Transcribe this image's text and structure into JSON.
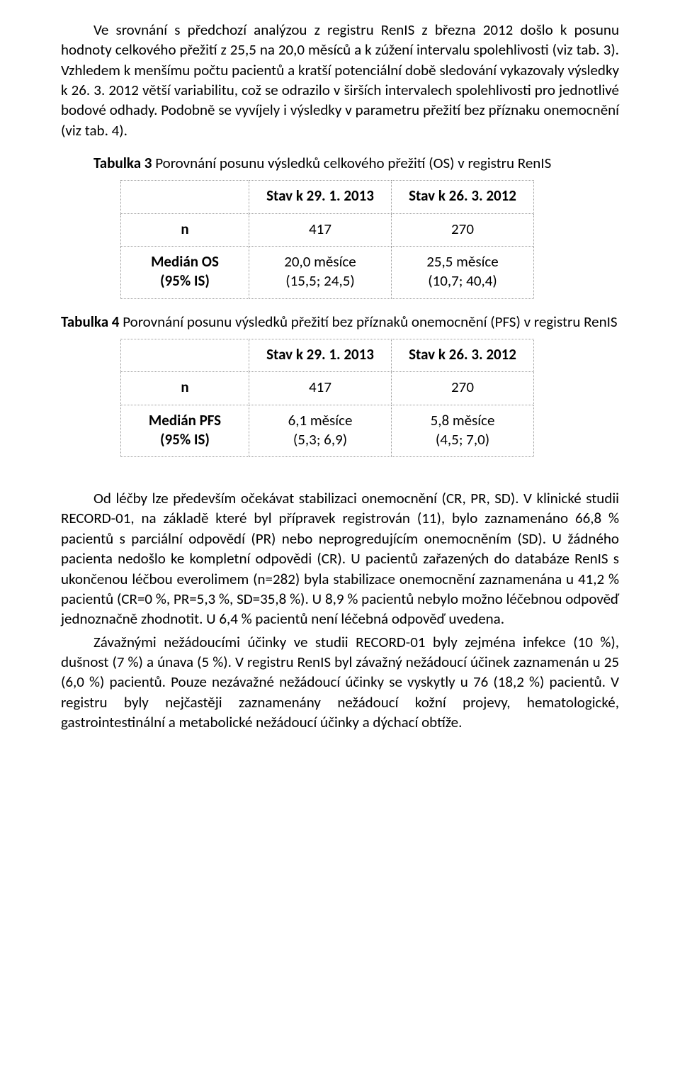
{
  "p1": "Ve srovnání s předchozí analýzou z registru RenIS z března 2012 došlo k posunu hodnoty celkového přežití z 25,5 na 20,0 měsíců a k zúžení intervalu spolehlivosti (viz tab. 3). Vzhledem k menšímu počtu pacientů a kratší potenciální době sledování vykazovaly výsledky k 26. 3. 2012 větší variabilitu, což se odrazilo v širších intervalech spolehlivosti pro jednotlivé bodové odhady. Podobně se vyvíjely i výsledky v parametru přežití bez příznaku onemocnění (viz tab. 4).",
  "tab3_lead": "Tabulka 3",
  "tab3_rest": " Porovnání posunu výsledků celkového přežití (OS) v registru RenIS",
  "t3": {
    "h1": "Stav k 29. 1. 2013",
    "h2": "Stav k 26. 3. 2012",
    "r1_label": "n",
    "r1_c1": "417",
    "r1_c2": "270",
    "r2_label_l1": "Medián OS",
    "r2_label_l2": "(95% IS)",
    "r2_c1_l1": "20,0 měsíce",
    "r2_c1_l2": "(15,5; 24,5)",
    "r2_c2_l1": "25,5 měsíce",
    "r2_c2_l2": "(10,7; 40,4)"
  },
  "tab4_lead": "Tabulka 4",
  "tab4_rest": " Porovnání posunu výsledků přežití bez příznaků onemocnění (PFS) v registru RenIS",
  "t4": {
    "h1": "Stav k 29. 1. 2013",
    "h2": "Stav k 26. 3. 2012",
    "r1_label": "n",
    "r1_c1": "417",
    "r1_c2": "270",
    "r2_label_l1": "Medián PFS",
    "r2_label_l2": "(95% IS)",
    "r2_c1_l1": "6,1 měsíce",
    "r2_c1_l2": "(5,3; 6,9)",
    "r2_c2_l1": "5,8 měsíce",
    "r2_c2_l2": "(4,5; 7,0)"
  },
  "p2": "Od léčby lze především očekávat stabilizaci onemocnění (CR, PR, SD). V klinické studii RECORD-01, na základě které byl přípravek registrován (11), bylo zaznamenáno 66,8 % pacientů s parciální odpovědí (PR) nebo neprogredujícím onemocněním (SD). U žádného pacienta nedošlo ke kompletní odpovědi (CR).  U pacientů zařazených do databáze RenIS s ukončenou léčbou everolimem (n=282) byla stabilizace onemocnění zaznamenána u 41,2 % pacientů (CR=0 %, PR=5,3 %, SD=35,8 %). U 8,9 % pacientů nebylo možno léčebnou odpověď jednoznačně zhodnotit. U 6,4 % pacientů není léčebná odpověď uvedena.",
  "p3": "Závažnými nežádoucími účinky ve studii RECORD-01 byly zejména infekce (10 %), dušnost (7 %) a únava (5 %).  V registru RenIS byl závažný nežádoucí účinek zaznamenán u 25 (6,0 %) pacientů. Pouze nezávažné nežádoucí účinky se vyskytly u 76 (18,2 %) pacientů.  V registru byly nejčastěji zaznamenány nežádoucí kožní projevy, hematologické, gastrointestinální a metabolické nežádoucí účinky a dýchací obtíže."
}
